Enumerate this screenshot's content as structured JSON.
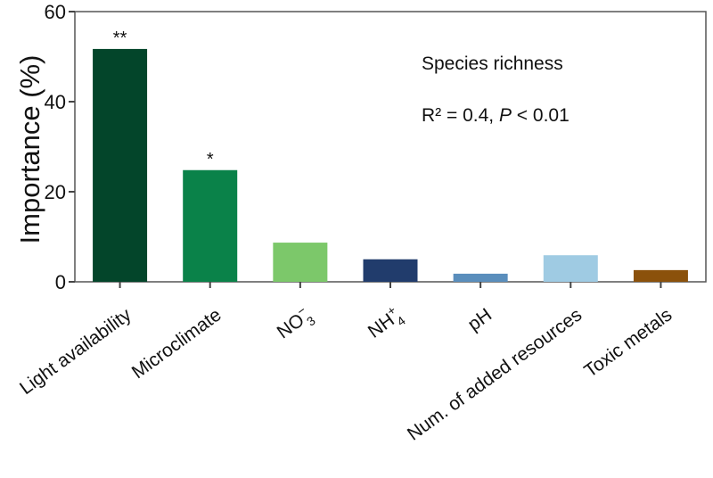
{
  "chart_data": {
    "type": "bar",
    "title": "Species richness",
    "annotation": {
      "r2_prefix": "R² = 0.4, ",
      "p_label": "P",
      "p_suffix": " < 0.01"
    },
    "ylabel": "Importance (%)",
    "xlabel": "",
    "ylim": [
      0,
      60
    ],
    "yticks": [
      0,
      20,
      40,
      60
    ],
    "grid": false,
    "categories": [
      {
        "label": "Light availability",
        "sub": "",
        "sup": ""
      },
      {
        "label": "Microclimate",
        "sub": "",
        "sup": ""
      },
      {
        "label": "NO",
        "sub": "3",
        "sup": "−"
      },
      {
        "label": "NH",
        "sub": "4",
        "sup": "+"
      },
      {
        "label": "pH",
        "sub": "",
        "sup": ""
      },
      {
        "label": "Num. of added resources",
        "sub": "",
        "sup": ""
      },
      {
        "label": "Toxic metals",
        "sub": "",
        "sup": ""
      }
    ],
    "values": [
      51.7,
      24.8,
      8.7,
      5.0,
      1.8,
      5.9,
      2.6
    ],
    "significance": [
      "**",
      "*",
      "",
      "",
      "",
      "",
      ""
    ],
    "colors": [
      "#03452A",
      "#0A8249",
      "#7CC86A",
      "#213C6C",
      "#5A8EBC",
      "#9FCBE3",
      "#8B510B"
    ]
  }
}
